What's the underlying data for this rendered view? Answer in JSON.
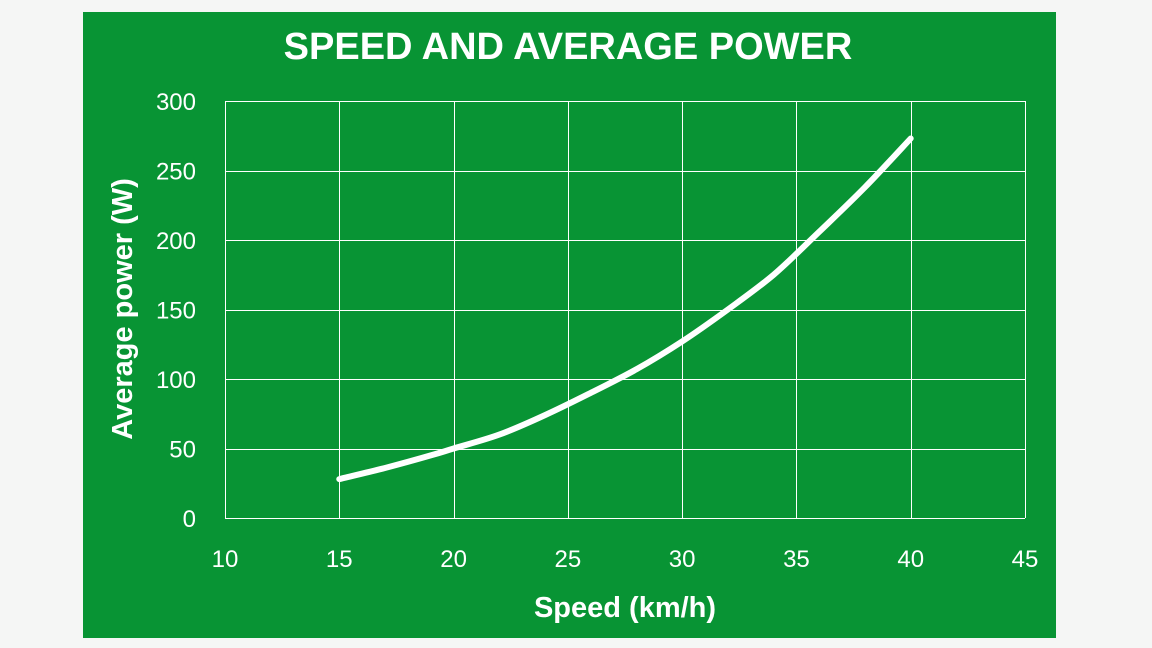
{
  "colors": {
    "panel": "#089434",
    "page": "#f5f6f5",
    "ink": "#ffffff"
  },
  "chart_data": {
    "type": "line",
    "title": "SPEED AND AVERAGE POWER",
    "xlabel": "Speed (km/h)",
    "ylabel": "Average power (W)",
    "xlim": [
      10,
      45
    ],
    "ylim": [
      0,
      300
    ],
    "x_ticks": [
      10,
      15,
      20,
      25,
      30,
      35,
      40,
      45
    ],
    "y_ticks": [
      0,
      50,
      100,
      150,
      200,
      250,
      300
    ],
    "grid": true,
    "legend": "none",
    "series": [
      {
        "x": [
          15,
          17,
          19,
          20,
          22,
          24,
          26,
          28,
          30,
          32,
          34,
          36,
          38,
          40
        ],
        "y": [
          28,
          36,
          45,
          50,
          60,
          74,
          90,
          107,
          127,
          150,
          175,
          206,
          238,
          273
        ]
      }
    ]
  }
}
